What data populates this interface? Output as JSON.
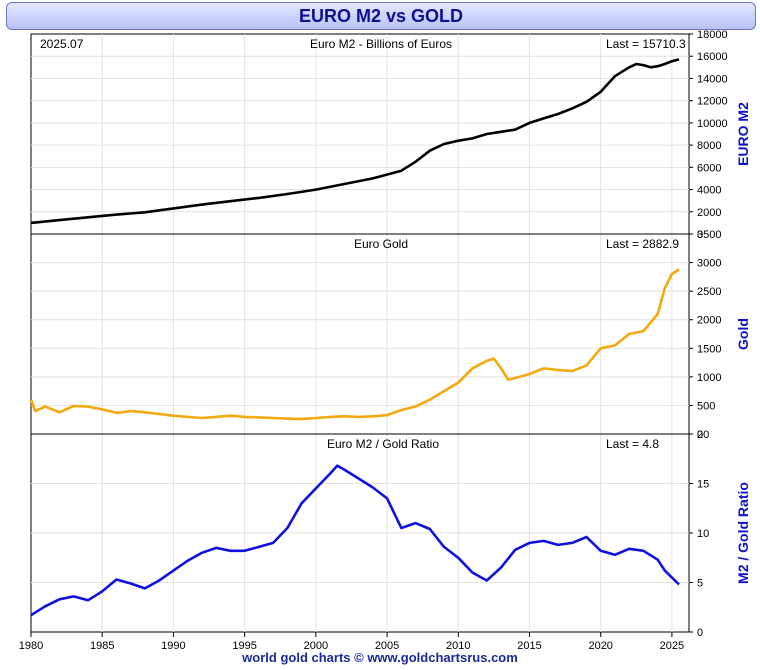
{
  "header": {
    "title": "EURO M2 vs GOLD"
  },
  "footer": {
    "text": "world gold charts © www.goldchartsrus.com"
  },
  "chart_data": [
    {
      "type": "line",
      "title": "Euro M2 - Billions of Euros",
      "date_label": "2025.07",
      "last_label": "Last = 15710.3",
      "ylabel": "EURO M2",
      "ylim": [
        0,
        18000
      ],
      "yticks": [
        "0",
        "2000",
        "4000",
        "6000",
        "8000",
        "10000",
        "12000",
        "14000",
        "16000",
        "18000"
      ],
      "color": "#000000",
      "x": [
        1980,
        1982,
        1984,
        1986,
        1988,
        1990,
        1992,
        1994,
        1996,
        1998,
        2000,
        2002,
        2004,
        2006,
        2007,
        2008,
        2009,
        2010,
        2011,
        2012,
        2013,
        2014,
        2015,
        2016,
        2017,
        2018,
        2019,
        2020,
        2021,
        2022,
        2022.5,
        2023,
        2023.5,
        2024,
        2024.5,
        2025,
        2025.5
      ],
      "values": [
        1000,
        1250,
        1500,
        1750,
        1950,
        2300,
        2650,
        2950,
        3250,
        3600,
        4000,
        4500,
        5000,
        5700,
        6500,
        7500,
        8100,
        8400,
        8600,
        9000,
        9200,
        9400,
        10000,
        10400,
        10800,
        11300,
        11900,
        12800,
        14200,
        15000,
        15300,
        15200,
        15000,
        15100,
        15300,
        15550,
        15710
      ]
    },
    {
      "type": "line",
      "title": "Euro Gold",
      "last_label": "Last = 2882.9",
      "ylabel": "Gold",
      "ylim": [
        0,
        3500
      ],
      "yticks": [
        "0",
        "500",
        "1000",
        "1500",
        "2000",
        "2500",
        "3000",
        "3500"
      ],
      "color": "#f4a90e",
      "x": [
        1980,
        1980.3,
        1981,
        1982,
        1983,
        1984,
        1985,
        1986,
        1987,
        1988,
        1989,
        1990,
        1991,
        1992,
        1993,
        1994,
        1995,
        1996,
        1997,
        1998,
        1999,
        2000,
        2001,
        2002,
        2003,
        2004,
        2005,
        2006,
        2007,
        2008,
        2009,
        2010,
        2011,
        2012,
        2012.5,
        2013,
        2013.5,
        2014,
        2015,
        2016,
        2017,
        2018,
        2019,
        2020,
        2021,
        2022,
        2023,
        2024,
        2024.5,
        2025,
        2025.5
      ],
      "values": [
        600,
        400,
        480,
        380,
        490,
        480,
        430,
        370,
        400,
        380,
        350,
        320,
        300,
        280,
        300,
        320,
        300,
        290,
        280,
        270,
        260,
        280,
        300,
        310,
        300,
        310,
        330,
        420,
        480,
        600,
        750,
        900,
        1150,
        1280,
        1320,
        1150,
        950,
        980,
        1050,
        1150,
        1120,
        1100,
        1200,
        1500,
        1550,
        1750,
        1800,
        2100,
        2550,
        2800,
        2880
      ]
    },
    {
      "type": "line",
      "title": "Euro M2 / Gold Ratio",
      "last_label": "Last = 4.8",
      "ylabel": "M2 / Gold Ratio",
      "ylim": [
        0,
        20
      ],
      "yticks": [
        "0",
        "5",
        "10",
        "15",
        "20"
      ],
      "color": "#1111dd",
      "x": [
        1980,
        1981,
        1982,
        1983,
        1984,
        1985,
        1986,
        1987,
        1988,
        1989,
        1990,
        1991,
        1992,
        1993,
        1994,
        1995,
        1996,
        1997,
        1998,
        1999,
        2000,
        2001,
        2001.5,
        2002,
        2003,
        2004,
        2005,
        2006,
        2007,
        2008,
        2009,
        2010,
        2011,
        2012,
        2013,
        2014,
        2015,
        2016,
        2017,
        2018,
        2019,
        2020,
        2021,
        2022,
        2023,
        2024,
        2024.5,
        2025,
        2025.5
      ],
      "values": [
        1.7,
        2.6,
        3.3,
        3.6,
        3.2,
        4.1,
        5.3,
        4.9,
        4.4,
        5.2,
        6.2,
        7.2,
        8.0,
        8.5,
        8.2,
        8.2,
        8.6,
        9.0,
        10.5,
        13.0,
        14.5,
        16.0,
        16.8,
        16.4,
        15.5,
        14.6,
        13.5,
        10.5,
        11.0,
        10.4,
        8.6,
        7.5,
        6.0,
        5.2,
        6.5,
        8.3,
        9.0,
        9.2,
        8.8,
        9.0,
        9.6,
        8.2,
        7.8,
        8.4,
        8.2,
        7.3,
        6.2,
        5.5,
        4.8
      ]
    }
  ],
  "x_axis": {
    "xlim": [
      1980,
      2026.2
    ],
    "ticks": [
      "1980",
      "1985",
      "1990",
      "1995",
      "2000",
      "2005",
      "2010",
      "2015",
      "2020",
      "2025"
    ]
  }
}
